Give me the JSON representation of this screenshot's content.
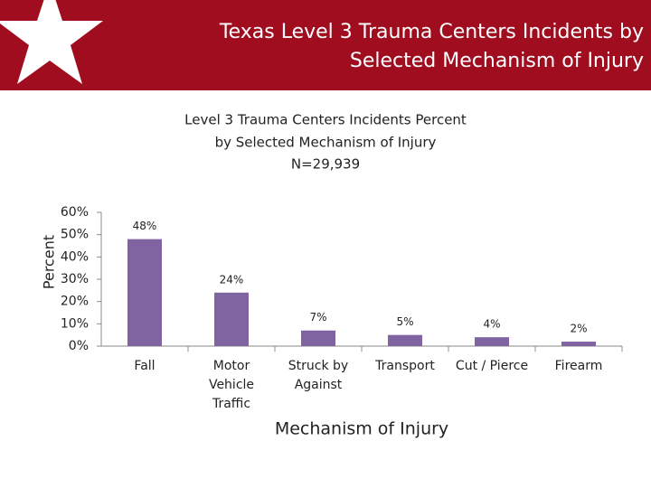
{
  "header": {
    "title_lines": [
      "Texas Level 3 Trauma Centers Incidents by",
      "Selected Mechanism of Injury"
    ]
  },
  "chart_data": {
    "type": "bar",
    "title": [
      "Level 3 Trauma Centers Incidents Percent",
      "by Selected Mechanism of Injury",
      "N=29,939"
    ],
    "categories": [
      "Fall",
      "Motor Vehicle Traffic",
      "Struck by Against",
      "Transport",
      "Cut / Pierce",
      "Firearm"
    ],
    "values": [
      48,
      24,
      7,
      5,
      4,
      2
    ],
    "value_labels": [
      "48%",
      "24%",
      "7%",
      "5%",
      "4%",
      "2%"
    ],
    "color": "#8064a2",
    "x_label": "Mechanism of Injury",
    "y_label": "Percent",
    "ylim": [
      0,
      60
    ],
    "yticks": [
      {
        "value": 0,
        "label": "0%"
      },
      {
        "value": 10,
        "label": "10%"
      },
      {
        "value": 20,
        "label": "20%"
      },
      {
        "value": 30,
        "label": "30%"
      },
      {
        "value": 40,
        "label": "40%"
      },
      {
        "value": 50,
        "label": "50%"
      },
      {
        "value": 60,
        "label": "60%"
      }
    ],
    "grid": false
  }
}
